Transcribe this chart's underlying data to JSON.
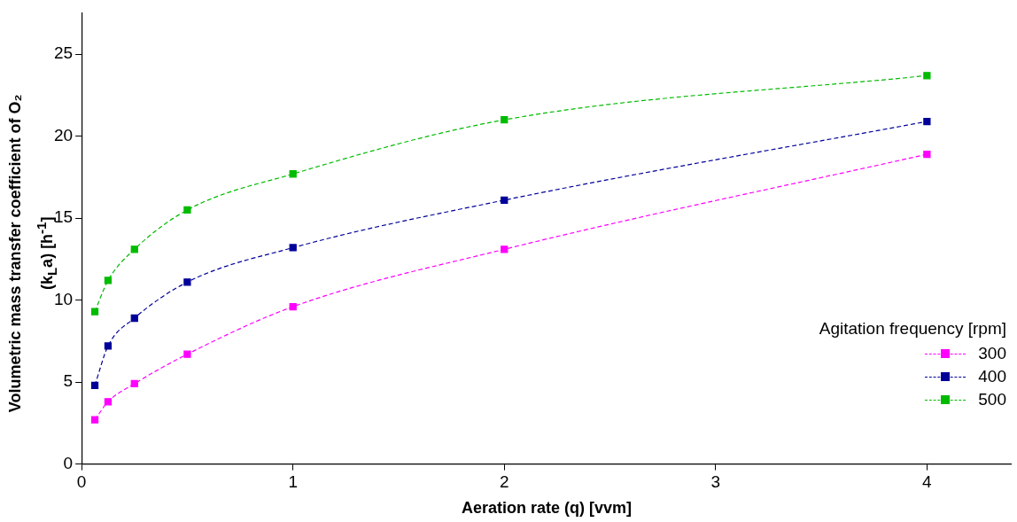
{
  "chart_data": {
    "type": "line",
    "xlabel": "Aeration rate (q) [vvm]",
    "ylabel": "Volumetric mass transfer coefficient of O₂ (k$_{L}$a) [h$^{-1}$]",
    "legend_title": "Agitation frequency [rpm]",
    "x": [
      0.0625,
      0.125,
      0.25,
      0.5,
      1,
      2,
      4
    ],
    "series": [
      {
        "name": "300",
        "color": "#ff00ff",
        "values": [
          2.7,
          3.8,
          4.9,
          6.7,
          9.6,
          13.1,
          18.9
        ]
      },
      {
        "name": "400",
        "color": "#000099",
        "values": [
          4.8,
          7.2,
          8.9,
          11.1,
          13.2,
          16.1,
          20.9
        ]
      },
      {
        "name": "500",
        "color": "#00bb00",
        "values": [
          9.3,
          11.2,
          13.1,
          15.5,
          17.7,
          21.0,
          23.7
        ]
      }
    ],
    "xlim": [
      0,
      4.4
    ],
    "xticks": [
      0,
      1,
      2,
      3,
      4
    ],
    "ylim": [
      0,
      27.5
    ],
    "yticks": [
      0,
      5,
      10,
      15,
      20,
      25
    ],
    "grid": false,
    "legend": "bottom right",
    "marker": "square",
    "line_style": "dashed"
  }
}
